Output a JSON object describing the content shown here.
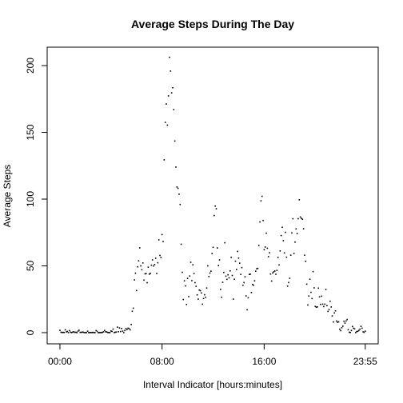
{
  "chart_data": {
    "type": "scatter",
    "title": "Average Steps During The Day",
    "xlabel": "Interval Indicator [hours:minutes]",
    "ylabel": "Average Steps",
    "color": "#000000",
    "xlim": [
      -60,
      1496
    ],
    "ylim": [
      -8.4,
      213.8
    ],
    "xticks": [
      {
        "value": 0,
        "label": "00:00"
      },
      {
        "value": 480,
        "label": "08:00"
      },
      {
        "value": 960,
        "label": "16:00"
      },
      {
        "value": 1435,
        "label": "23:55"
      }
    ],
    "yticks": [
      0,
      50,
      100,
      150,
      200
    ],
    "x": [
      0,
      5,
      10,
      15,
      20,
      25,
      30,
      35,
      40,
      45,
      50,
      55,
      60,
      65,
      70,
      75,
      80,
      85,
      90,
      95,
      100,
      105,
      110,
      115,
      120,
      125,
      130,
      135,
      140,
      145,
      150,
      155,
      160,
      165,
      170,
      175,
      180,
      185,
      190,
      195,
      200,
      205,
      210,
      215,
      220,
      225,
      230,
      235,
      240,
      245,
      250,
      255,
      260,
      265,
      270,
      275,
      280,
      285,
      290,
      295,
      300,
      305,
      310,
      315,
      320,
      325,
      330,
      335,
      340,
      345,
      350,
      355,
      360,
      365,
      370,
      375,
      380,
      385,
      390,
      395,
      400,
      405,
      410,
      415,
      420,
      425,
      430,
      435,
      440,
      445,
      450,
      455,
      460,
      465,
      470,
      475,
      480,
      485,
      490,
      495,
      500,
      505,
      510,
      515,
      520,
      525,
      530,
      535,
      540,
      545,
      550,
      555,
      560,
      565,
      570,
      575,
      580,
      585,
      590,
      595,
      600,
      605,
      610,
      615,
      620,
      625,
      630,
      635,
      640,
      645,
      650,
      655,
      660,
      665,
      670,
      675,
      680,
      685,
      690,
      695,
      700,
      705,
      710,
      715,
      720,
      725,
      730,
      735,
      740,
      745,
      750,
      755,
      760,
      765,
      770,
      775,
      780,
      785,
      790,
      795,
      800,
      805,
      810,
      815,
      820,
      825,
      830,
      835,
      840,
      845,
      850,
      855,
      860,
      865,
      870,
      875,
      880,
      885,
      890,
      895,
      900,
      905,
      910,
      915,
      920,
      925,
      930,
      935,
      940,
      945,
      950,
      955,
      960,
      965,
      970,
      975,
      980,
      985,
      990,
      995,
      1000,
      1005,
      1010,
      1015,
      1020,
      1025,
      1030,
      1035,
      1040,
      1045,
      1050,
      1055,
      1060,
      1065,
      1070,
      1075,
      1080,
      1085,
      1090,
      1095,
      1100,
      1105,
      1110,
      1115,
      1120,
      1125,
      1130,
      1135,
      1140,
      1145,
      1150,
      1155,
      1160,
      1165,
      1170,
      1175,
      1180,
      1185,
      1190,
      1195,
      1200,
      1205,
      1210,
      1215,
      1220,
      1225,
      1230,
      1235,
      1240,
      1245,
      1250,
      1255,
      1260,
      1265,
      1270,
      1275,
      1280,
      1285,
      1290,
      1295,
      1300,
      1305,
      1310,
      1315,
      1320,
      1325,
      1330,
      1335,
      1340,
      1345,
      1350,
      1355,
      1360,
      1365,
      1370,
      1375,
      1380,
      1385,
      1390,
      1395,
      1400,
      1405,
      1410,
      1415,
      1420,
      1425,
      1430,
      1435
    ],
    "values": [
      1.7,
      0.3,
      0.1,
      0.2,
      0.1,
      2.1,
      0.5,
      0.9,
      0,
      1.5,
      0.3,
      0.1,
      0.3,
      0.7,
      0.2,
      0.3,
      0,
      1.1,
      1.8,
      0.2,
      0.2,
      0.4,
      0.3,
      0,
      0,
      0,
      1.1,
      0,
      0,
      0.1,
      0,
      0.2,
      0,
      0,
      1.5,
      0.9,
      0,
      0,
      0,
      0,
      0.2,
      0.6,
      1.6,
      0.6,
      0.5,
      0.1,
      0,
      0,
      1.2,
      0.9,
      2.6,
      0,
      0.3,
      0.4,
      4.1,
      0.7,
      3.5,
      0.8,
      3.1,
      1.1,
      0,
      1.6,
      3,
      2.2,
      3.3,
      3,
      2.1,
      6.1,
      16,
      18.3,
      39.5,
      44.5,
      31.5,
      49.3,
      53.8,
      63.5,
      50,
      47.1,
      52.2,
      39.3,
      44,
      44.2,
      37.4,
      49,
      43.8,
      44.4,
      50.5,
      54.5,
      49.9,
      51,
      55.7,
      44.3,
      52.3,
      69.5,
      57.8,
      56.2,
      73.4,
      68.2,
      129.4,
      157.5,
      171.2,
      155.4,
      177.3,
      206.2,
      195.9,
      179.6,
      183.4,
      167,
      143.5,
      124,
      109.1,
      108.1,
      103.7,
      96,
      66.2,
      45.2,
      24.8,
      38.8,
      35,
      21.1,
      40.6,
      27,
      42.4,
      52.7,
      38.9,
      50.8,
      44.3,
      37.4,
      34.7,
      28.3,
      25.1,
      31.9,
      31.4,
      29.7,
      21.3,
      25.5,
      28.4,
      26.5,
      33.4,
      50,
      42,
      44.6,
      46,
      59.2,
      63.9,
      87.7,
      94.8,
      92.8,
      63.4,
      50.2,
      54.5,
      32.4,
      26.5,
      37.7,
      45.1,
      67.3,
      42.3,
      39.9,
      43.3,
      41,
      46.2,
      56.4,
      42.8,
      25.1,
      40,
      53.5,
      47.3,
      60.8,
      55.8,
      52,
      43.6,
      48.7,
      35.5,
      37.5,
      41.8,
      27.5,
      17.1,
      26.1,
      43.6,
      43.8,
      30,
      36.1,
      35.5,
      38.8,
      46,
      47.8,
      48.1,
      65.3,
      82.9,
      98.7,
      102.1,
      84,
      62.1,
      64.1,
      74.5,
      63.2,
      56.9,
      59.8,
      43.9,
      38.6,
      44.7,
      45.5,
      46.2,
      43.7,
      46.6,
      56.3,
      50.7,
      61.2,
      72.7,
      78.9,
      68.9,
      59.7,
      75.1,
      56.5,
      34.8,
      37.5,
      40.7,
      58,
      74.7,
      85.3,
      59.3,
      67.8,
      77.7,
      74.2,
      85.3,
      99.5,
      86.6,
      85.6,
      84.9,
      77.8,
      58,
      53.4,
      36.3,
      20.7,
      27.4,
      40,
      30.2,
      25.5,
      45.7,
      33.5,
      19.6,
      19,
      19.3,
      33.3,
      26.8,
      21.2,
      27.3,
      21.3,
      19.5,
      21.3,
      32.3,
      20.2,
      15.9,
      17.2,
      23.5,
      19.2,
      12.5,
      8,
      14.7,
      16.3,
      8.7,
      7.8,
      8.1,
      2.6,
      1.5,
      3.7,
      4.8,
      8.5,
      7.1,
      8.7,
      9.8,
      2.2,
      0.3,
      0.1,
      1.6,
      4.6,
      3.3,
      2.8,
      0,
      0.8,
      1,
      1.6,
      2.6,
      4.7,
      3.3,
      0.6,
      0.2,
      1.1
    ]
  }
}
